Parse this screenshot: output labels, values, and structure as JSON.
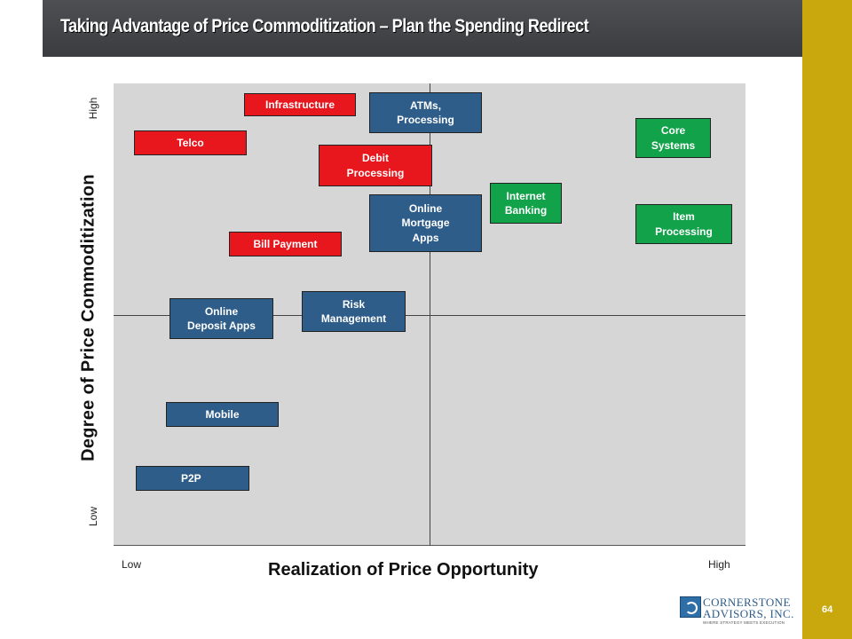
{
  "title": "Taking Advantage of Price Commoditization – Plan the Spending Redirect",
  "page_number": "64",
  "axes": {
    "y_title": "Degree of Price Commoditization",
    "y_high": "High",
    "y_low": "Low",
    "x_title": "Realization of Price Opportunity",
    "x_low": "Low",
    "x_high": "High"
  },
  "colors": {
    "red": "#e8161d",
    "blue": "#2f5d8a",
    "green": "#12a24a",
    "plot_background": "#d6d6d6",
    "accent_gold": "#c9a80e"
  },
  "items": [
    {
      "id": "infrastructure",
      "label": "Infrastructure",
      "color": "red"
    },
    {
      "id": "atms",
      "label": "ATMs,\nProcessing",
      "color": "blue"
    },
    {
      "id": "telco",
      "label": "Telco",
      "color": "red"
    },
    {
      "id": "debit",
      "label": "Debit\nProcessing",
      "color": "red"
    },
    {
      "id": "core",
      "label": "Core\nSystems",
      "color": "green"
    },
    {
      "id": "internet",
      "label": "Internet\nBanking",
      "color": "green"
    },
    {
      "id": "online-mortgage",
      "label": "Online\nMortgage\nApps",
      "color": "blue"
    },
    {
      "id": "item-processing",
      "label": "Item\nProcessing",
      "color": "green"
    },
    {
      "id": "bill-payment",
      "label": "Bill Payment",
      "color": "red"
    },
    {
      "id": "risk",
      "label": "Risk\nManagement",
      "color": "blue"
    },
    {
      "id": "online-deposit",
      "label": "Online\nDeposit Apps",
      "color": "blue"
    },
    {
      "id": "mobile",
      "label": "Mobile",
      "color": "blue"
    },
    {
      "id": "p2p",
      "label": "P2P",
      "color": "blue"
    }
  ],
  "logo": {
    "line1": "CORNERSTONE",
    "line2": "ADVISORS, INC.",
    "tagline": "WHERE STRATEGY MEETS EXECUTION"
  }
}
